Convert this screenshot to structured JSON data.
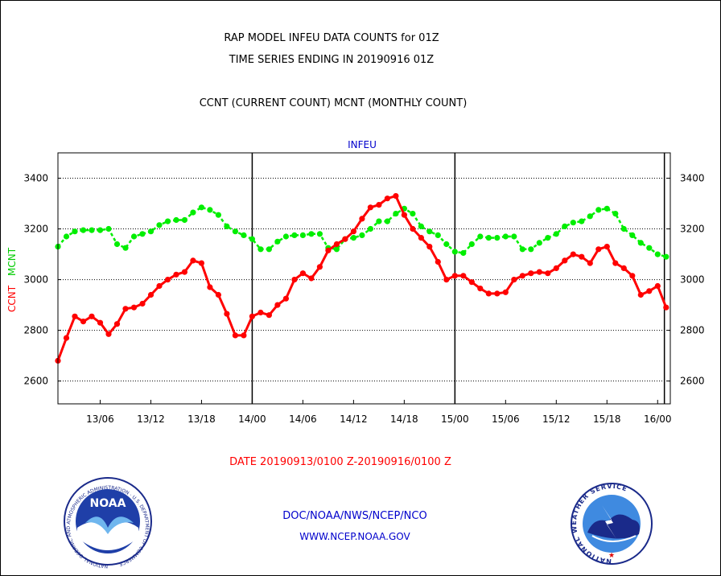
{
  "header": {
    "title_line1": "RAP MODEL INFEU DATA COUNTS for 01Z",
    "title_line2": "TIME SERIES ENDING IN 20190916 01Z",
    "subtitle": "CCNT (CURRENT COUNT) MCNT (MONTHLY COUNT)"
  },
  "footer": {
    "date_range": "DATE 20190913/0100 Z-20190916/0100 Z",
    "org_line": "DOC/NOAA/NWS/NCEP/NCO",
    "url_line": "WWW.NCEP.NOAA.GOV"
  },
  "logos": {
    "left_name": "NOAA",
    "left_ring": "NATIONAL OCEANIC AND ATMOSPHERIC ADMINISTRATION · U.S. DEPARTMENT OF COMMERCE",
    "right_ring": "NATIONAL WEATHER SERVICE"
  },
  "colors": {
    "ccnt": "#ff0000",
    "mcnt": "#00ee00",
    "text": "#000000",
    "link": "#0000cc"
  },
  "chart_data": {
    "type": "line",
    "title": "INFEU",
    "ylabel_ccnt": "CCNT",
    "ylabel_mcnt": "MCNT",
    "ylim": [
      2510,
      3500
    ],
    "yticks": [
      2600,
      2800,
      3000,
      3200,
      3400
    ],
    "xlim": [
      0,
      72.5
    ],
    "xticks": [
      {
        "x": 5,
        "label": "13/06"
      },
      {
        "x": 11,
        "label": "13/12"
      },
      {
        "x": 17,
        "label": "13/18"
      },
      {
        "x": 23,
        "label": "14/00"
      },
      {
        "x": 29,
        "label": "14/06"
      },
      {
        "x": 35,
        "label": "14/12"
      },
      {
        "x": 41,
        "label": "14/18"
      },
      {
        "x": 47,
        "label": "15/00"
      },
      {
        "x": 53,
        "label": "15/06"
      },
      {
        "x": 59,
        "label": "15/12"
      },
      {
        "x": 65,
        "label": "15/18"
      },
      {
        "x": 71,
        "label": "16/00"
      }
    ],
    "day_boundaries": [
      23,
      47,
      71.8
    ],
    "grid": true,
    "series": [
      {
        "name": "CCNT",
        "color": "#ff0000",
        "values": [
          2680,
          2770,
          2855,
          2835,
          2855,
          2830,
          2785,
          2825,
          2885,
          2890,
          2905,
          2940,
          2975,
          3000,
          3020,
          3030,
          3075,
          3065,
          2970,
          2940,
          2865,
          2780,
          2780,
          2855,
          2870,
          2860,
          2900,
          2925,
          3000,
          3025,
          3005,
          3050,
          3115,
          3140,
          3160,
          3190,
          3240,
          3285,
          3295,
          3320,
          3330,
          3255,
          3200,
          3165,
          3130,
          3070,
          3000,
          3015,
          3015,
          2990,
          2965,
          2945,
          2945,
          2950,
          3000,
          3015,
          3025,
          3030,
          3025,
          3045,
          3075,
          3100,
          3090,
          3065,
          3120,
          3130,
          3065,
          3045,
          3015,
          2940,
          2955,
          2975,
          2890
        ]
      },
      {
        "name": "MCNT",
        "color": "#00ee00",
        "values": [
          3130,
          3170,
          3190,
          3195,
          3195,
          3195,
          3200,
          3140,
          3125,
          3170,
          3180,
          3190,
          3215,
          3230,
          3235,
          3235,
          3265,
          3285,
          3275,
          3255,
          3210,
          3190,
          3175,
          3160,
          3120,
          3120,
          3150,
          3170,
          3175,
          3175,
          3180,
          3180,
          3125,
          3120,
          3160,
          3165,
          3175,
          3200,
          3230,
          3230,
          3260,
          3280,
          3260,
          3210,
          3190,
          3175,
          3140,
          3110,
          3105,
          3140,
          3170,
          3165,
          3165,
          3170,
          3170,
          3120,
          3120,
          3145,
          3165,
          3180,
          3210,
          3225,
          3230,
          3250,
          3275,
          3280,
          3260,
          3200,
          3175,
          3145,
          3125,
          3100,
          3090
        ]
      }
    ]
  }
}
